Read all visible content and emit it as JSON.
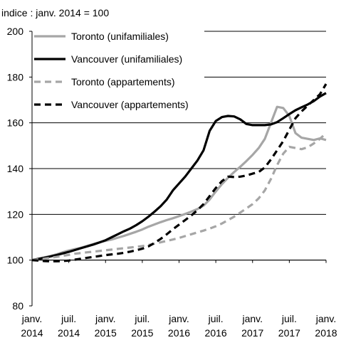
{
  "chart_data": {
    "type": "line",
    "subtitle": "indice : janv. 2014 = 100",
    "xlabel": "",
    "ylabel": "",
    "ylim": [
      80,
      200
    ],
    "yticks": [
      80,
      100,
      120,
      140,
      160,
      180,
      200
    ],
    "xlim": [
      "2014-01",
      "2018-01"
    ],
    "xticks": [
      {
        "x": "2014-01",
        "line1": "janv.",
        "line2": "2014"
      },
      {
        "x": "2014-07",
        "line1": "juil.",
        "line2": "2014"
      },
      {
        "x": "2015-01",
        "line1": "janv.",
        "line2": "2015"
      },
      {
        "x": "2015-07",
        "line1": "juil.",
        "line2": "2015"
      },
      {
        "x": "2016-01",
        "line1": "janv.",
        "line2": "2016"
      },
      {
        "x": "2016-07",
        "line1": "juil.",
        "line2": "2016"
      },
      {
        "x": "2017-01",
        "line1": "janv.",
        "line2": "2017"
      },
      {
        "x": "2017-07",
        "line1": "juil.",
        "line2": "2017"
      },
      {
        "x": "2018-01",
        "line1": "janv.",
        "line2": "2018"
      }
    ],
    "grid": "horizontal",
    "legend_position": "top-left",
    "series": [
      {
        "name": "Toronto (unifamiliales)",
        "color": "#a6a6a6",
        "dash": "solid",
        "points": [
          [
            "2014-01",
            100
          ],
          [
            "2014-02",
            100.6
          ],
          [
            "2014-03",
            101.2
          ],
          [
            "2014-04",
            101.8
          ],
          [
            "2014-05",
            102.5
          ],
          [
            "2014-06",
            103.4
          ],
          [
            "2014-07",
            104.2
          ],
          [
            "2014-08",
            104.8
          ],
          [
            "2014-09",
            105.4
          ],
          [
            "2014-10",
            106.2
          ],
          [
            "2014-11",
            107.0
          ],
          [
            "2014-12",
            107.8
          ],
          [
            "2015-01",
            108.4
          ],
          [
            "2015-02",
            109.0
          ],
          [
            "2015-03",
            109.8
          ],
          [
            "2015-04",
            110.6
          ],
          [
            "2015-05",
            111.5
          ],
          [
            "2015-06",
            112.4
          ],
          [
            "2015-07",
            113.4
          ],
          [
            "2015-08",
            114.6
          ],
          [
            "2015-09",
            115.6
          ],
          [
            "2015-10",
            116.6
          ],
          [
            "2015-11",
            117.5
          ],
          [
            "2015-12",
            118.3
          ],
          [
            "2016-01",
            119.2
          ],
          [
            "2016-02",
            120.2
          ],
          [
            "2016-03",
            121.2
          ],
          [
            "2016-04",
            122.3
          ],
          [
            "2016-05",
            123.8
          ],
          [
            "2016-06",
            126.5
          ],
          [
            "2016-07",
            130.0
          ],
          [
            "2016-08",
            133.2
          ],
          [
            "2016-09",
            136.0
          ],
          [
            "2016-10",
            138.5
          ],
          [
            "2016-11",
            140.8
          ],
          [
            "2016-12",
            143.3
          ],
          [
            "2017-01",
            146.0
          ],
          [
            "2017-02",
            149.0
          ],
          [
            "2017-03",
            153.0
          ],
          [
            "2017-04",
            160.0
          ],
          [
            "2017-05",
            167.0
          ],
          [
            "2017-06",
            166.5
          ],
          [
            "2017-07",
            163.0
          ],
          [
            "2017-08",
            155.5
          ],
          [
            "2017-09",
            153.5
          ],
          [
            "2017-10",
            153.0
          ],
          [
            "2017-11",
            152.5
          ],
          [
            "2017-12",
            153.2
          ],
          [
            "2018-01",
            152.5
          ]
        ]
      },
      {
        "name": "Vancouver (unifamiliales)",
        "color": "#000000",
        "dash": "solid",
        "points": [
          [
            "2014-01",
            100
          ],
          [
            "2014-02",
            100.5
          ],
          [
            "2014-03",
            101.0
          ],
          [
            "2014-04",
            101.6
          ],
          [
            "2014-05",
            102.2
          ],
          [
            "2014-06",
            102.9
          ],
          [
            "2014-07",
            103.6
          ],
          [
            "2014-08",
            104.4
          ],
          [
            "2014-09",
            105.2
          ],
          [
            "2014-10",
            106.0
          ],
          [
            "2014-11",
            106.8
          ],
          [
            "2014-12",
            107.7
          ],
          [
            "2015-01",
            108.7
          ],
          [
            "2015-02",
            110.0
          ],
          [
            "2015-03",
            111.3
          ],
          [
            "2015-04",
            112.6
          ],
          [
            "2015-05",
            113.8
          ],
          [
            "2015-06",
            115.3
          ],
          [
            "2015-07",
            117.0
          ],
          [
            "2015-08",
            119.0
          ],
          [
            "2015-09",
            121.2
          ],
          [
            "2015-10",
            123.6
          ],
          [
            "2015-11",
            126.5
          ],
          [
            "2015-12",
            130.5
          ],
          [
            "2016-01",
            133.5
          ],
          [
            "2016-02",
            136.5
          ],
          [
            "2016-03",
            140.0
          ],
          [
            "2016-04",
            143.5
          ],
          [
            "2016-05",
            148.0
          ],
          [
            "2016-06",
            156.5
          ],
          [
            "2016-07",
            160.8
          ],
          [
            "2016-08",
            162.5
          ],
          [
            "2016-09",
            163.0
          ],
          [
            "2016-10",
            162.8
          ],
          [
            "2016-11",
            161.5
          ],
          [
            "2016-12",
            159.5
          ],
          [
            "2017-01",
            159.0
          ],
          [
            "2017-02",
            159.0
          ],
          [
            "2017-03",
            159.0
          ],
          [
            "2017-04",
            159.3
          ],
          [
            "2017-05",
            160.3
          ],
          [
            "2017-06",
            162.0
          ],
          [
            "2017-07",
            163.8
          ],
          [
            "2017-08",
            165.5
          ],
          [
            "2017-09",
            166.8
          ],
          [
            "2017-10",
            168.0
          ],
          [
            "2017-11",
            169.5
          ],
          [
            "2017-12",
            171.5
          ],
          [
            "2018-01",
            173.0
          ]
        ]
      },
      {
        "name": "Toronto (appartements)",
        "color": "#a6a6a6",
        "dash": "dashed",
        "points": [
          [
            "2014-01",
            100
          ],
          [
            "2014-02",
            100.3
          ],
          [
            "2014-03",
            100.6
          ],
          [
            "2014-04",
            101.0
          ],
          [
            "2014-05",
            101.4
          ],
          [
            "2014-06",
            101.9
          ],
          [
            "2014-07",
            102.3
          ],
          [
            "2014-08",
            102.8
          ],
          [
            "2014-09",
            103.1
          ],
          [
            "2014-10",
            103.4
          ],
          [
            "2014-11",
            103.7
          ],
          [
            "2014-12",
            104.0
          ],
          [
            "2015-01",
            104.3
          ],
          [
            "2015-02",
            104.6
          ],
          [
            "2015-03",
            104.9
          ],
          [
            "2015-04",
            105.2
          ],
          [
            "2015-05",
            105.5
          ],
          [
            "2015-06",
            105.8
          ],
          [
            "2015-07",
            106.1
          ],
          [
            "2015-08",
            106.6
          ],
          [
            "2015-09",
            107.2
          ],
          [
            "2015-10",
            107.8
          ],
          [
            "2015-11",
            108.4
          ],
          [
            "2015-12",
            109.0
          ],
          [
            "2016-01",
            109.7
          ],
          [
            "2016-02",
            110.5
          ],
          [
            "2016-03",
            111.3
          ],
          [
            "2016-04",
            112.1
          ],
          [
            "2016-05",
            112.9
          ],
          [
            "2016-06",
            113.8
          ],
          [
            "2016-07",
            114.8
          ],
          [
            "2016-08",
            116.0
          ],
          [
            "2016-09",
            117.5
          ],
          [
            "2016-10",
            119.0
          ],
          [
            "2016-11",
            120.8
          ],
          [
            "2016-12",
            122.6
          ],
          [
            "2017-01",
            124.5
          ],
          [
            "2017-02",
            127.0
          ],
          [
            "2017-03",
            130.5
          ],
          [
            "2017-04",
            135.5
          ],
          [
            "2017-05",
            141.5
          ],
          [
            "2017-06",
            146.5
          ],
          [
            "2017-07",
            149.5
          ],
          [
            "2017-08",
            149.0
          ],
          [
            "2017-09",
            148.5
          ],
          [
            "2017-10",
            149.3
          ],
          [
            "2017-11",
            151.0
          ],
          [
            "2017-12",
            153.0
          ],
          [
            "2018-01",
            155.5
          ]
        ]
      },
      {
        "name": "Vancouver (appartements)",
        "color": "#000000",
        "dash": "dashed",
        "points": [
          [
            "2014-01",
            100
          ],
          [
            "2014-02",
            99.8
          ],
          [
            "2014-03",
            99.6
          ],
          [
            "2014-04",
            99.5
          ],
          [
            "2014-05",
            99.5
          ],
          [
            "2014-06",
            99.6
          ],
          [
            "2014-07",
            99.8
          ],
          [
            "2014-08",
            100.2
          ],
          [
            "2014-09",
            100.6
          ],
          [
            "2014-10",
            101.0
          ],
          [
            "2014-11",
            101.4
          ],
          [
            "2014-12",
            101.8
          ],
          [
            "2015-01",
            102.2
          ],
          [
            "2015-02",
            102.5
          ],
          [
            "2015-03",
            102.8
          ],
          [
            "2015-04",
            103.2
          ],
          [
            "2015-05",
            103.7
          ],
          [
            "2015-06",
            104.3
          ],
          [
            "2015-07",
            105.0
          ],
          [
            "2015-08",
            106.0
          ],
          [
            "2015-09",
            107.5
          ],
          [
            "2015-10",
            109.3
          ],
          [
            "2015-11",
            111.3
          ],
          [
            "2015-12",
            113.5
          ],
          [
            "2016-01",
            115.5
          ],
          [
            "2016-02",
            117.5
          ],
          [
            "2016-03",
            119.5
          ],
          [
            "2016-04",
            121.8
          ],
          [
            "2016-05",
            124.5
          ],
          [
            "2016-06",
            128.0
          ],
          [
            "2016-07",
            131.5
          ],
          [
            "2016-08",
            134.5
          ],
          [
            "2016-09",
            136.5
          ],
          [
            "2016-10",
            136.3
          ],
          [
            "2016-11",
            136.5
          ],
          [
            "2016-12",
            137.0
          ],
          [
            "2017-01",
            137.8
          ],
          [
            "2017-02",
            138.5
          ],
          [
            "2017-03",
            140.5
          ],
          [
            "2017-04",
            144.0
          ],
          [
            "2017-05",
            148.0
          ],
          [
            "2017-06",
            152.0
          ],
          [
            "2017-07",
            157.0
          ],
          [
            "2017-08",
            162.0
          ],
          [
            "2017-09",
            165.0
          ],
          [
            "2017-10",
            167.5
          ],
          [
            "2017-11",
            170.0
          ],
          [
            "2017-12",
            172.5
          ],
          [
            "2018-01",
            177.0
          ]
        ]
      }
    ]
  }
}
